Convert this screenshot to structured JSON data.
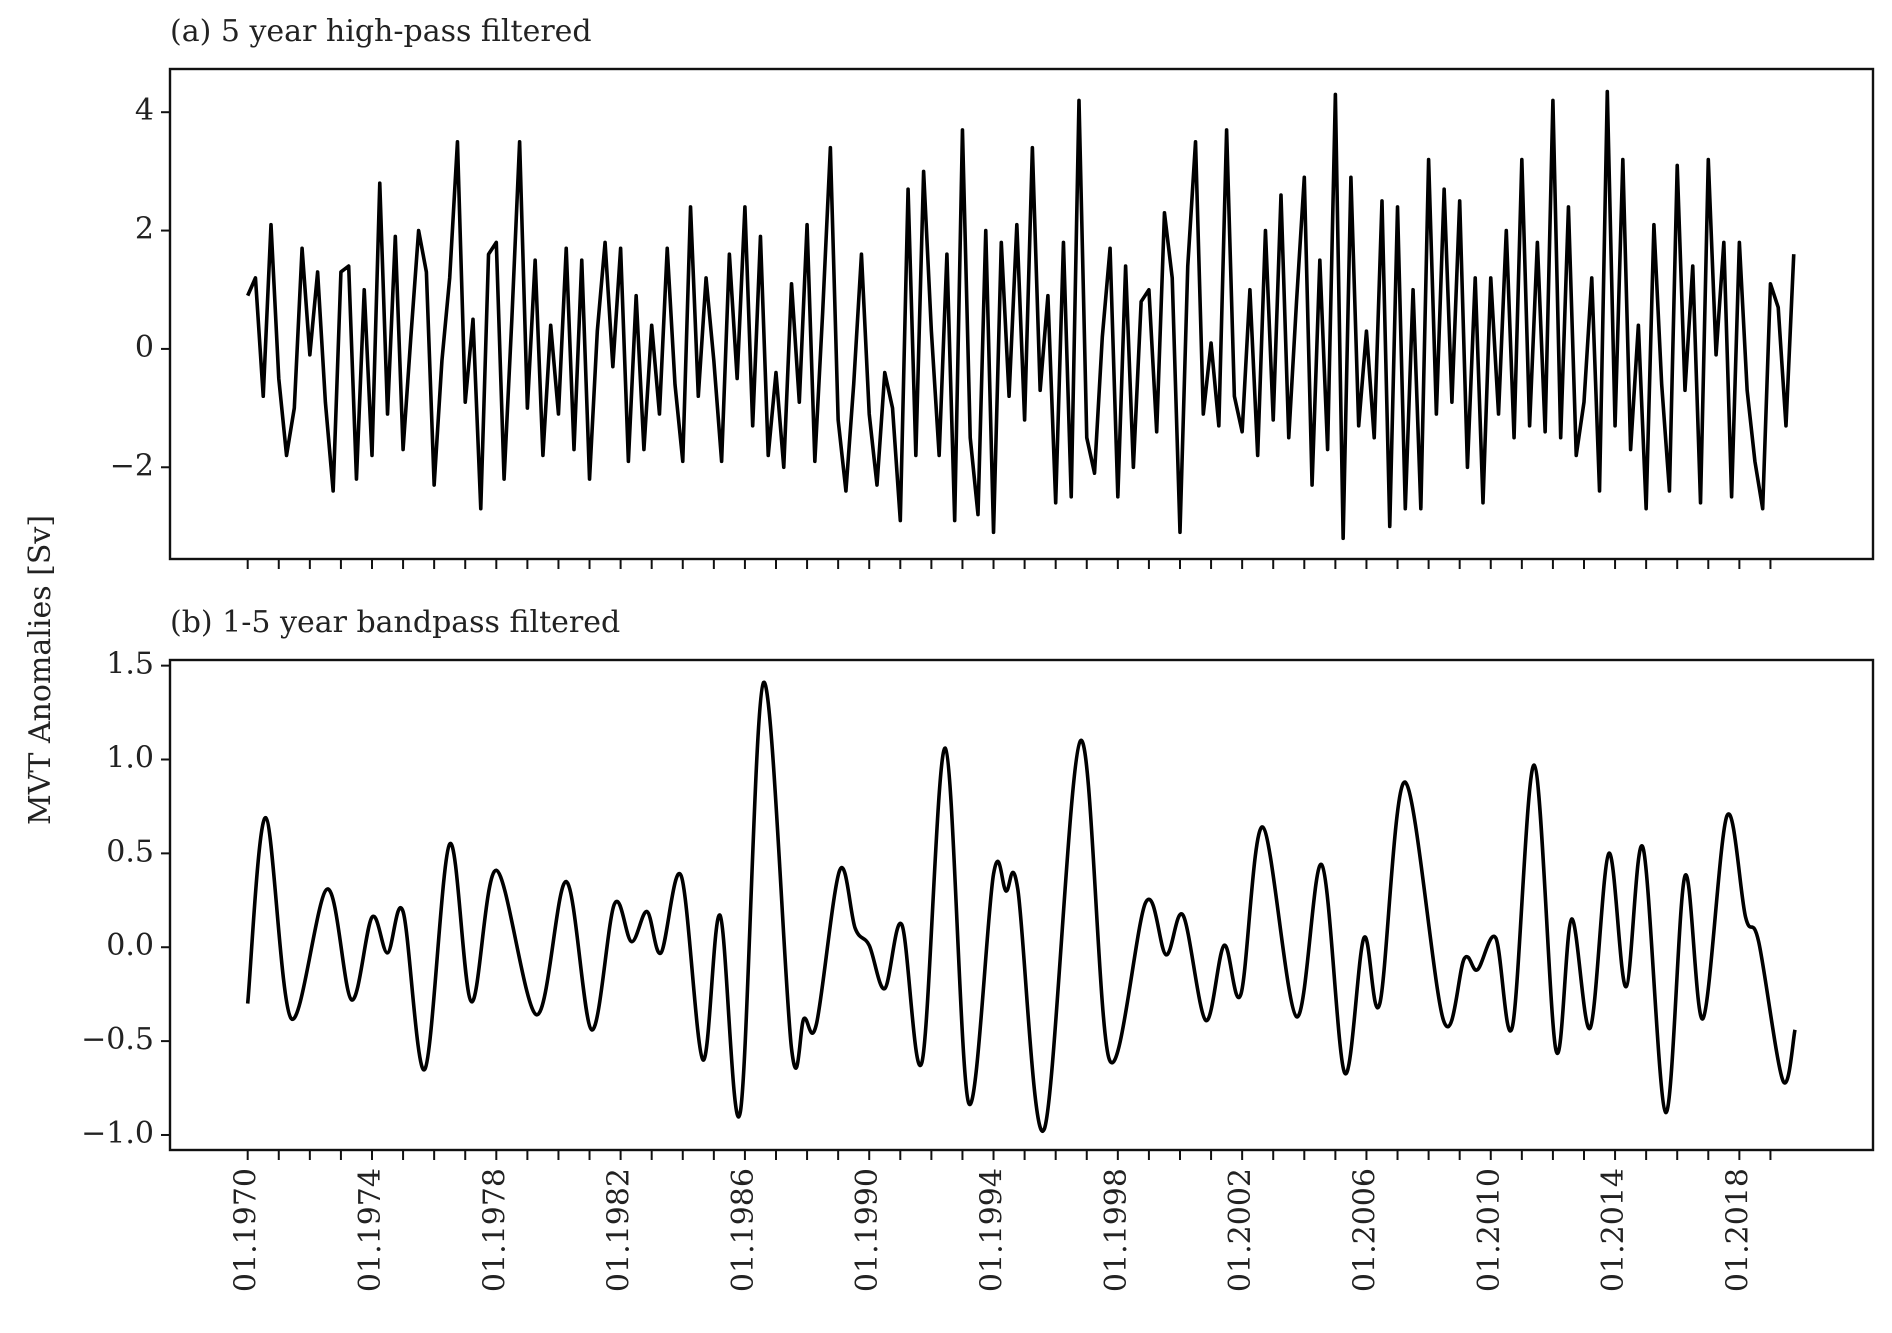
{
  "ylabel": "MVT Anomalies [Sv]",
  "chart_data": [
    {
      "type": "line",
      "title": "(a) 5 year high-pass filtered",
      "color": "#000000",
      "smooth": false,
      "xticklabels": false,
      "xlim": [
        1967.5,
        2022.3
      ],
      "ylim": [
        -3.55,
        4.73
      ],
      "yticks": [
        {
          "value": -2,
          "label": "−2"
        },
        0,
        2,
        4
      ],
      "xticks": [
        1970,
        1971,
        1972,
        1973,
        1974,
        1975,
        1976,
        1977,
        1978,
        1979,
        1980,
        1981,
        1982,
        1983,
        1984,
        1985,
        1986,
        1987,
        1988,
        1989,
        1990,
        1991,
        1992,
        1993,
        1994,
        1995,
        1996,
        1997,
        1998,
        1999,
        2000,
        2001,
        2002,
        2003,
        2004,
        2005,
        2006,
        2007,
        2008,
        2009,
        2010,
        2011,
        2012,
        2013,
        2014,
        2015,
        2016,
        2017,
        2018,
        2019
      ],
      "x": [
        1970,
        1970.25,
        1970.5,
        1970.75,
        1971,
        1971.25,
        1971.5,
        1971.75,
        1972,
        1972.25,
        1972.5,
        1972.75,
        1973,
        1973.25,
        1973.5,
        1973.75,
        1974,
        1974.25,
        1974.5,
        1974.75,
        1975,
        1975.25,
        1975.5,
        1975.75,
        1976,
        1976.25,
        1976.5,
        1976.75,
        1977,
        1977.25,
        1977.5,
        1977.75,
        1978,
        1978.25,
        1978.5,
        1978.75,
        1979,
        1979.25,
        1979.5,
        1979.75,
        1980,
        1980.25,
        1980.5,
        1980.75,
        1981,
        1981.25,
        1981.5,
        1981.75,
        1982,
        1982.25,
        1982.5,
        1982.75,
        1983,
        1983.25,
        1983.5,
        1983.75,
        1984,
        1984.25,
        1984.5,
        1984.75,
        1985,
        1985.25,
        1985.5,
        1985.75,
        1986,
        1986.25,
        1986.5,
        1986.75,
        1987,
        1987.25,
        1987.5,
        1987.75,
        1988,
        1988.25,
        1988.5,
        1988.75,
        1989,
        1989.25,
        1989.5,
        1989.75,
        1990,
        1990.25,
        1990.5,
        1990.75,
        1991,
        1991.25,
        1991.5,
        1991.75,
        1992,
        1992.25,
        1992.5,
        1992.75,
        1993,
        1993.25,
        1993.5,
        1993.75,
        1994,
        1994.25,
        1994.5,
        1994.75,
        1995,
        1995.25,
        1995.5,
        1995.75,
        1996,
        1996.25,
        1996.5,
        1996.75,
        1997,
        1997.25,
        1997.5,
        1997.75,
        1998,
        1998.25,
        1998.5,
        1998.75,
        1999,
        1999.25,
        1999.5,
        1999.75,
        2000,
        2000.25,
        2000.5,
        2000.75,
        2001,
        2001.25,
        2001.5,
        2001.75,
        2002,
        2002.25,
        2002.5,
        2002.75,
        2003,
        2003.25,
        2003.5,
        2003.75,
        2004,
        2004.25,
        2004.5,
        2004.75,
        2005,
        2005.25,
        2005.5,
        2005.75,
        2006,
        2006.25,
        2006.5,
        2006.75,
        2007,
        2007.25,
        2007.5,
        2007.75,
        2008,
        2008.25,
        2008.5,
        2008.75,
        2009,
        2009.25,
        2009.5,
        2009.75,
        2010,
        2010.25,
        2010.5,
        2010.75,
        2011,
        2011.25,
        2011.5,
        2011.75,
        2012,
        2012.25,
        2012.5,
        2012.75,
        2013,
        2013.25,
        2013.5,
        2013.75,
        2014,
        2014.25,
        2014.5,
        2014.75,
        2015,
        2015.25,
        2015.5,
        2015.75,
        2016,
        2016.25,
        2016.5,
        2016.75,
        2017,
        2017.25,
        2017.5,
        2017.75,
        2018,
        2018.25,
        2018.5,
        2018.75,
        2019,
        2019.25,
        2019.5,
        2019.75
      ],
      "values": [
        0.9,
        1.2,
        -0.8,
        2.1,
        -0.5,
        -1.8,
        -1.0,
        1.7,
        -0.1,
        1.3,
        -0.9,
        -2.4,
        1.3,
        1.4,
        -2.2,
        1.0,
        -1.8,
        2.8,
        -1.1,
        1.9,
        -1.7,
        0.2,
        2.0,
        1.3,
        -2.3,
        -0.2,
        1.2,
        3.5,
        -0.9,
        0.5,
        -2.7,
        1.6,
        1.8,
        -2.2,
        0.5,
        3.5,
        -1.0,
        1.5,
        -1.8,
        0.4,
        -1.1,
        1.7,
        -1.7,
        1.5,
        -2.2,
        0.3,
        1.8,
        -0.3,
        1.7,
        -1.9,
        0.9,
        -1.7,
        0.4,
        -1.1,
        1.7,
        -0.6,
        -1.9,
        2.4,
        -0.8,
        1.2,
        -0.2,
        -1.9,
        1.6,
        -0.5,
        2.4,
        -1.3,
        1.9,
        -1.8,
        -0.4,
        -2.0,
        1.1,
        -0.9,
        2.1,
        -1.9,
        0.6,
        3.4,
        -1.2,
        -2.4,
        -0.6,
        1.6,
        -1.1,
        -2.3,
        -0.4,
        -1.0,
        -2.9,
        2.7,
        -1.8,
        3.0,
        0.3,
        -1.8,
        1.6,
        -2.9,
        3.7,
        -1.5,
        -2.8,
        2.0,
        -3.1,
        1.8,
        -0.8,
        2.1,
        -1.2,
        3.4,
        -0.7,
        0.9,
        -2.6,
        1.8,
        -2.5,
        4.2,
        -1.5,
        -2.1,
        0.2,
        1.7,
        -2.5,
        1.4,
        -2.0,
        0.8,
        1.0,
        -1.4,
        2.3,
        1.2,
        -3.1,
        1.4,
        3.5,
        -1.1,
        0.1,
        -1.3,
        3.7,
        -0.8,
        -1.4,
        1.0,
        -1.8,
        2.0,
        -1.2,
        2.6,
        -1.5,
        0.8,
        2.9,
        -2.3,
        1.5,
        -1.7,
        4.3,
        -3.2,
        2.9,
        -1.3,
        0.3,
        -1.5,
        2.5,
        -3.0,
        2.4,
        -2.7,
        1.0,
        -2.7,
        3.2,
        -1.1,
        2.7,
        -0.9,
        2.5,
        -2.0,
        1.2,
        -2.6,
        1.2,
        -1.1,
        2.0,
        -1.5,
        3.2,
        -1.3,
        1.8,
        -1.4,
        4.2,
        -1.5,
        2.4,
        -1.8,
        -0.9,
        1.2,
        -2.4,
        4.35,
        -1.3,
        3.2,
        -1.7,
        0.4,
        -2.7,
        2.1,
        -0.6,
        -2.4,
        3.1,
        -0.7,
        1.4,
        -2.6,
        3.2,
        -0.1,
        1.8,
        -2.5,
        1.8,
        -0.7,
        -1.9,
        -2.7,
        1.1,
        0.7,
        -1.3,
        1.6
      ]
    },
    {
      "type": "line",
      "title": "(b) 1-5 year bandpass filtered",
      "color": "#000000",
      "smooth": true,
      "xticklabels": true,
      "xlim": [
        1967.5,
        2022.3
      ],
      "ylim": [
        -1.08,
        1.53
      ],
      "yticks": [
        {
          "value": -1.0,
          "label": "−1.0"
        },
        {
          "value": -0.5,
          "label": "−0.5"
        },
        {
          "value": 0,
          "label": "0.0"
        },
        0.5,
        {
          "value": 1.0,
          "label": "1.0"
        },
        1.5
      ],
      "xticks": [
        {
          "value": 1970,
          "label": "01.1970"
        },
        {
          "value": 1974,
          "label": "01.1974"
        },
        {
          "value": 1978,
          "label": "01.1978"
        },
        {
          "value": 1982,
          "label": "01.1982"
        },
        {
          "value": 1986,
          "label": "01.1986"
        },
        {
          "value": 1990,
          "label": "01.1990"
        },
        {
          "value": 1994,
          "label": "01.1994"
        },
        {
          "value": 1998,
          "label": "01.1998"
        },
        {
          "value": 2002,
          "label": "01.2002"
        },
        {
          "value": 2006,
          "label": "01.2006"
        },
        {
          "value": 2010,
          "label": "01.2010"
        },
        {
          "value": 2014,
          "label": "01.2014"
        },
        {
          "value": 2018,
          "label": "01.2018"
        }
      ],
      "xminorticks": [
        1971,
        1972,
        1973,
        1975,
        1976,
        1977,
        1979,
        1980,
        1981,
        1983,
        1984,
        1985,
        1987,
        1988,
        1989,
        1991,
        1992,
        1993,
        1995,
        1996,
        1997,
        1999,
        2000,
        2001,
        2003,
        2004,
        2005,
        2007,
        2008,
        2009,
        2011,
        2012,
        2013,
        2015,
        2016,
        2017,
        2019
      ],
      "x": [
        1970.0,
        1970.58,
        1971.4,
        1972.56,
        1973.34,
        1974.0,
        1974.5,
        1975.0,
        1975.7,
        1976.5,
        1977.2,
        1978.0,
        1979.3,
        1980.25,
        1981.07,
        1981.8,
        1982.35,
        1982.85,
        1983.3,
        1983.95,
        1984.65,
        1985.2,
        1985.85,
        1986.6,
        1987.5,
        1987.9,
        1988.3,
        1989.05,
        1989.55,
        1990.0,
        1990.5,
        1991.05,
        1991.7,
        1992.45,
        1993.2,
        1994.0,
        1994.4,
        1994.78,
        1995.63,
        1996.8,
        1997.73,
        1998.9,
        1999.55,
        2000.1,
        2000.83,
        2001.42,
        2001.96,
        2002.66,
        2003.75,
        2004.56,
        2005.3,
        2005.92,
        2006.43,
        2007.24,
        2008.48,
        2009.15,
        2009.57,
        2010.16,
        2010.7,
        2011.4,
        2012.1,
        2012.6,
        2013.2,
        2013.8,
        2014.35,
        2014.9,
        2015.63,
        2016.25,
        2016.83,
        2017.6,
        2018.2,
        2018.62,
        2019.4,
        2019.79
      ],
      "values": [
        -0.3,
        0.69,
        -0.38,
        0.31,
        -0.28,
        0.16,
        -0.03,
        0.19,
        -0.65,
        0.55,
        -0.29,
        0.41,
        -0.36,
        0.35,
        -0.44,
        0.23,
        0.03,
        0.19,
        -0.03,
        0.38,
        -0.6,
        0.17,
        -0.88,
        1.41,
        -0.54,
        -0.38,
        -0.41,
        0.41,
        0.1,
        0.01,
        -0.22,
        0.12,
        -0.61,
        1.06,
        -0.83,
        0.39,
        0.3,
        0.31,
        -0.97,
        1.1,
        -0.6,
        0.24,
        -0.04,
        0.17,
        -0.39,
        0.01,
        -0.25,
        0.64,
        -0.37,
        0.44,
        -0.67,
        0.05,
        -0.3,
        0.88,
        -0.39,
        -0.06,
        -0.12,
        0.05,
        -0.42,
        0.97,
        -0.55,
        0.15,
        -0.43,
        0.5,
        -0.21,
        0.53,
        -0.88,
        0.38,
        -0.38,
        0.7,
        0.16,
        0.03,
        -0.71,
        -0.44
      ]
    }
  ]
}
